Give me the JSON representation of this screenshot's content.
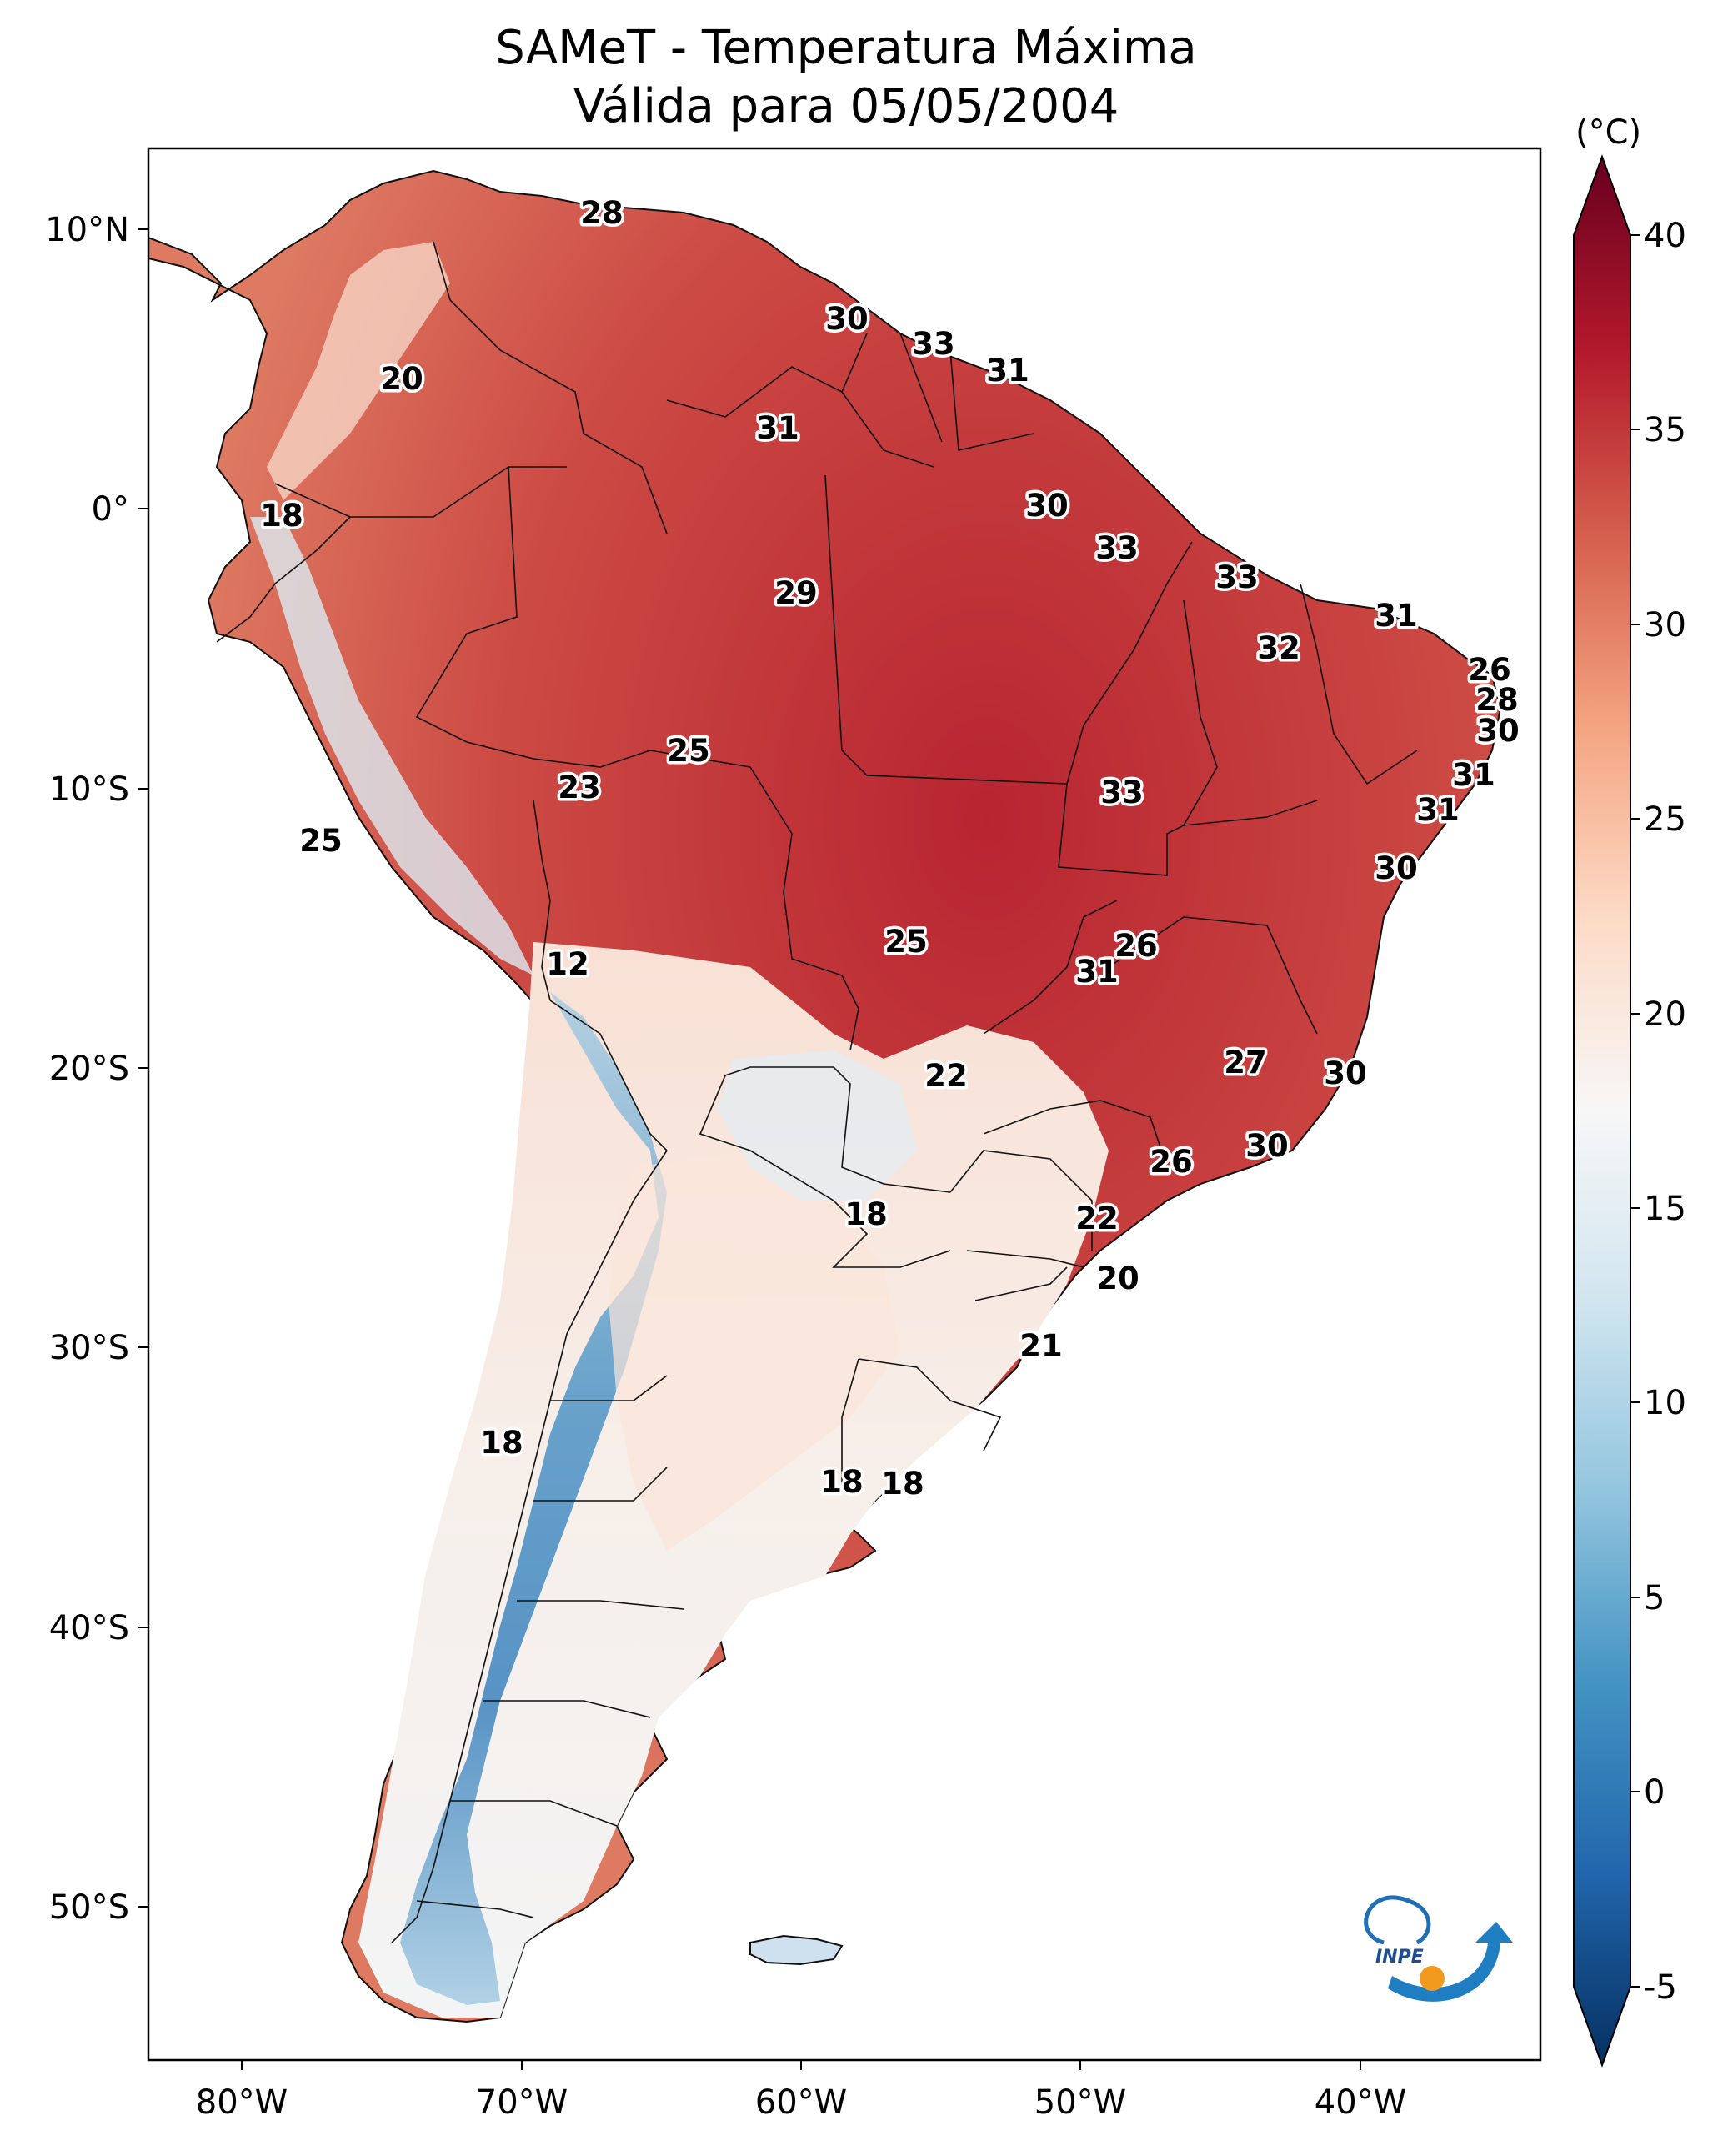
{
  "title": {
    "line1": "SAMeT - Temperatura Máxima",
    "line2": "Válida para 05/05/2004"
  },
  "colorbar": {
    "unit": "(°C)",
    "ticks": [
      "-5",
      "0",
      "5",
      "10",
      "15",
      "20",
      "25",
      "30",
      "35",
      "40"
    ],
    "range": [
      -7,
      42
    ],
    "colors": [
      "#053061",
      "#2166ac",
      "#4393c3",
      "#92c5de",
      "#d1e5f0",
      "#f7f7f7",
      "#fddbc7",
      "#f4a582",
      "#d6604d",
      "#b2182b",
      "#67001f"
    ]
  },
  "axes": {
    "lat_ticks": [
      "10°N",
      "0°",
      "10°S",
      "20°S",
      "30°S",
      "40°S",
      "50°S"
    ],
    "lon_ticks": [
      "80°W",
      "70°W",
      "60°W",
      "50°W",
      "40°W"
    ]
  },
  "city_values": [
    "28",
    "30",
    "33",
    "31",
    "20",
    "31",
    "18",
    "30",
    "33",
    "29",
    "33",
    "31",
    "32",
    "26",
    "28",
    "30",
    "25",
    "23",
    "33",
    "31",
    "31",
    "25",
    "30",
    "12",
    "25",
    "26",
    "31",
    "22",
    "27",
    "30",
    "30",
    "26",
    "18",
    "22",
    "20",
    "21",
    "18",
    "18",
    "18"
  ],
  "logo": {
    "text": "INPE"
  }
}
